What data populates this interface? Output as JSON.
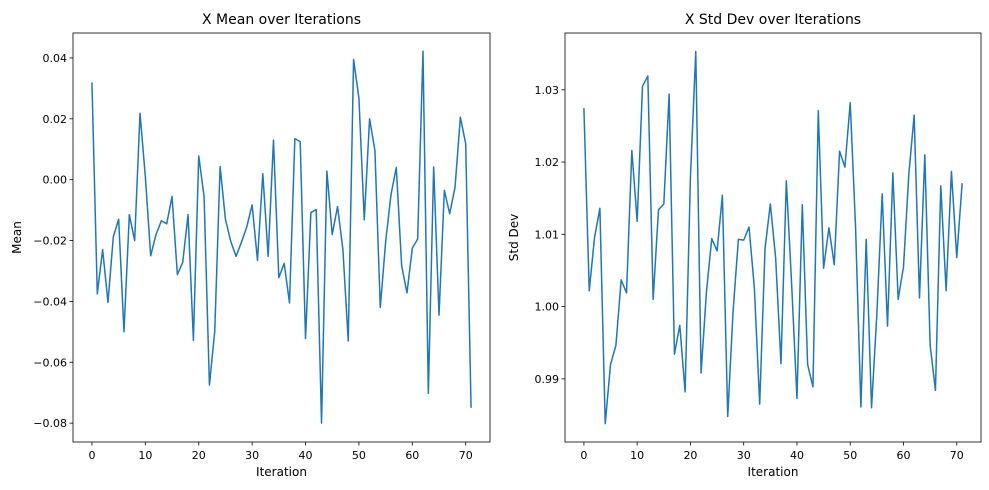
{
  "chart_data": [
    {
      "type": "line",
      "title": "X Mean over Iterations",
      "xlabel": "Iteration",
      "ylabel": "Mean",
      "xlim": [
        -3.55,
        74.55
      ],
      "ylim": [
        -0.0862,
        0.0482
      ],
      "xticks": [
        0,
        10,
        20,
        30,
        40,
        50,
        60,
        70
      ],
      "yticks": [
        -0.08,
        -0.06,
        -0.04,
        -0.02,
        0.0,
        0.02,
        0.04
      ],
      "ytick_labels": [
        "−0.08",
        "−0.06",
        "−0.04",
        "−0.02",
        "0.00",
        "0.02",
        "0.04"
      ],
      "grid": false,
      "series": [
        {
          "color": "#1f77b4",
          "values": [
            0.0318,
            -0.0375,
            -0.023,
            -0.0403,
            -0.0188,
            -0.013,
            -0.05,
            -0.0115,
            -0.02,
            0.0218,
            0.001,
            -0.025,
            -0.018,
            -0.0135,
            -0.0145,
            -0.0055,
            -0.0312,
            -0.0272,
            -0.0115,
            -0.0528,
            0.0078,
            -0.0055,
            -0.0675,
            -0.0498,
            0.0043,
            -0.013,
            -0.0203,
            -0.0252,
            -0.0205,
            -0.0155,
            -0.0083,
            -0.0265,
            0.002,
            -0.0252,
            0.013,
            -0.0322,
            -0.0275,
            -0.0405,
            0.0135,
            0.0125,
            -0.0522,
            -0.0108,
            -0.0098,
            -0.08,
            0.0028,
            -0.018,
            -0.0088,
            -0.023,
            -0.053,
            0.0395,
            0.0268,
            -0.0132,
            0.02,
            0.0095,
            -0.042,
            -0.0205,
            -0.005,
            0.004,
            -0.0282,
            -0.0372,
            -0.0225,
            -0.0195,
            0.0422,
            -0.0702,
            0.0042,
            -0.0445,
            -0.0035,
            -0.0112,
            -0.0025,
            0.0205,
            0.0118,
            -0.0748
          ]
        }
      ]
    },
    {
      "type": "line",
      "title": "X Std Dev over Iterations",
      "xlabel": "Iteration",
      "ylabel": "Std Dev",
      "xlim": [
        -3.55,
        74.55
      ],
      "ylim": [
        0.98126,
        1.03786
      ],
      "xticks": [
        0,
        10,
        20,
        30,
        40,
        50,
        60,
        70
      ],
      "yticks": [
        0.99,
        1.0,
        1.01,
        1.02,
        1.03
      ],
      "ytick_labels": [
        "0.99",
        "1.00",
        "1.01",
        "1.02",
        "1.03"
      ],
      "grid": false,
      "series": [
        {
          "color": "#1f77b4",
          "values": [
            1.0274,
            1.0022,
            1.0096,
            1.0136,
            0.9838,
            0.992,
            0.9946,
            1.0037,
            1.0019,
            1.0216,
            1.0118,
            1.0305,
            1.0319,
            1.001,
            1.0134,
            1.0142,
            1.0294,
            0.9934,
            0.9974,
            0.9882,
            1.0179,
            1.0353,
            0.9908,
            1.002,
            1.0094,
            1.0077,
            1.0154,
            0.9848,
            0.9993,
            1.0093,
            1.0092,
            1.011,
            1.0026,
            0.9865,
            1.008,
            1.0142,
            1.0067,
            0.9921,
            1.0174,
            1.0031,
            0.9873,
            1.0141,
            0.992,
            0.9889,
            1.0271,
            1.0053,
            1.0109,
            1.0058,
            1.0215,
            1.0193,
            1.0282,
            1.011,
            0.9861,
            1.0093,
            0.986,
            0.999,
            1.0156,
            0.9973,
            1.0185,
            1.001,
            1.0055,
            1.0183,
            1.0265,
            1.0012,
            1.021,
            0.9947,
            0.9884,
            1.0167,
            1.0022,
            1.0187,
            1.0068,
            1.017
          ]
        }
      ]
    }
  ]
}
